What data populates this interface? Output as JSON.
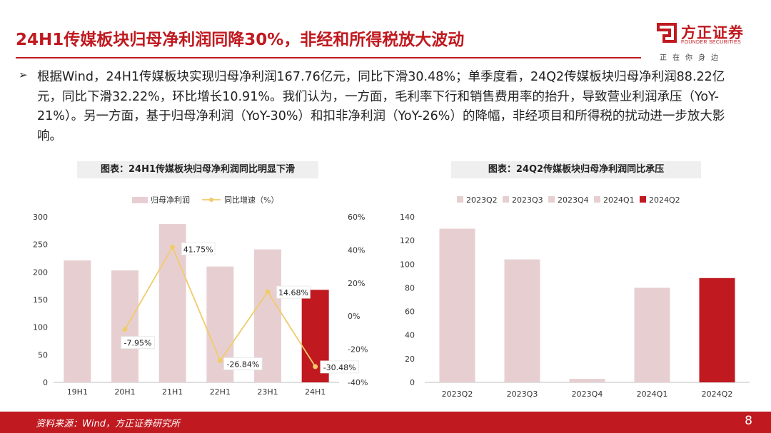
{
  "slide": {
    "title": "24H1传媒板块归母净利润同降30%，非经和所得税放大波动",
    "bullet": "根据Wind，24H1传媒板块实现归母净利润167.76亿元，同比下滑30.48%；单季度看，24Q2传媒板块归母净利润88.22亿元，同比下滑32.22%，环比增长10.91%。我们认为，一方面，毛利率下行和销售费用率的抬升，导致营业利润承压（YoY-21%）。另一方面，基于归母净利润（YoY-30%）和扣非净利润（YoY-26%）的降幅，非经项目和所得税的扰动进一步放大影响。",
    "source": "资料来源：Wind，方正证券研究所",
    "page_number": "8"
  },
  "logo": {
    "name": "方正证券",
    "english": "FOUNDER SECURITIES",
    "slogan": "正在你身边"
  },
  "colors": {
    "brand_red": "#c0191f",
    "bar_pink": "#e7cfd1",
    "bar_highlight": "#c0191f",
    "line_yellow": "#f0cb6b"
  },
  "chart_data": [
    {
      "type": "bar",
      "title": "图表：24H1传媒板块归母净利润同比明显下滑",
      "categories": [
        "19H1",
        "20H1",
        "21H1",
        "22H1",
        "23H1",
        "24H1"
      ],
      "series": [
        {
          "name": "归母净利润",
          "type": "bar",
          "axis": "left",
          "values": [
            221,
            203,
            287,
            210,
            241,
            167.76
          ]
        },
        {
          "name": "同比增速（%）",
          "type": "line",
          "axis": "right",
          "values": [
            null,
            -7.95,
            41.75,
            -26.84,
            14.68,
            -30.48
          ]
        }
      ],
      "data_labels": [
        "",
        "-7.95%",
        "41.75%",
        "-26.84%",
        "14.68%",
        "-30.48%"
      ],
      "ylim": [
        0,
        300
      ],
      "y_ticks": [
        "0",
        "50",
        "100",
        "150",
        "200",
        "250",
        "300"
      ],
      "y2lim": [
        -40,
        60
      ],
      "y2_ticks": [
        "-40%",
        "-20%",
        "0%",
        "20%",
        "40%",
        "60%"
      ],
      "highlight_index": 5,
      "legend_position": "top",
      "grid": false
    },
    {
      "type": "bar",
      "title": "图表：24Q2传媒板块归母净利润同比承压",
      "categories": [
        "2023Q2",
        "2023Q3",
        "2023Q4",
        "2024Q1",
        "2024Q2"
      ],
      "values": [
        130,
        104,
        3,
        80,
        88.22
      ],
      "legend": [
        "2023Q2",
        "2023Q3",
        "2023Q4",
        "2024Q1",
        "2024Q2"
      ],
      "ylim": [
        0,
        140
      ],
      "y_ticks": [
        "0",
        "20",
        "40",
        "60",
        "80",
        "100",
        "120",
        "140"
      ],
      "highlight_index": 4,
      "legend_position": "top",
      "grid": false
    }
  ]
}
